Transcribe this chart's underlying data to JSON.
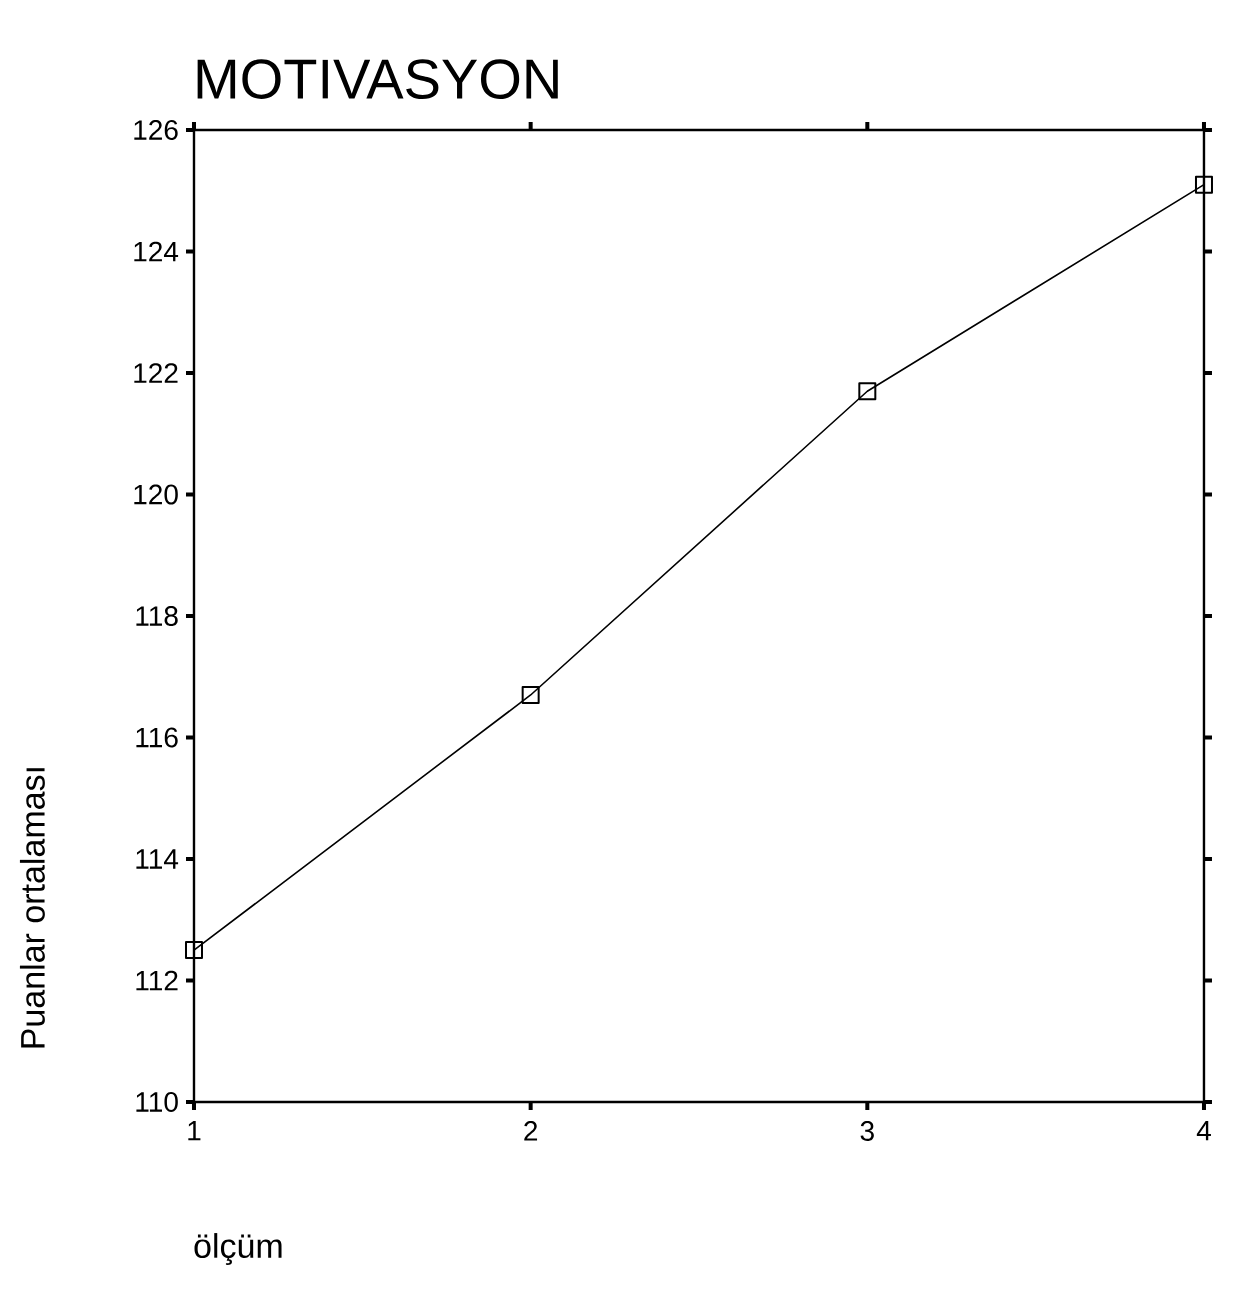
{
  "chart_data": {
    "type": "line",
    "title": "MOTIVASYON",
    "xlabel": "ölçüm",
    "ylabel": "Puanlar ortalaması",
    "x": [
      1,
      2,
      3,
      4
    ],
    "series": [
      {
        "color": "#000000",
        "values": [
          112.5,
          116.7,
          121.7,
          125.1
        ]
      }
    ],
    "xlim": [
      1,
      4
    ],
    "xticks": [
      1,
      2,
      3,
      4
    ],
    "ylim": [
      110,
      126
    ],
    "yticks": [
      110,
      112,
      114,
      116,
      118,
      120,
      122,
      124,
      126
    ],
    "marker": "square",
    "line_style": "solid"
  }
}
